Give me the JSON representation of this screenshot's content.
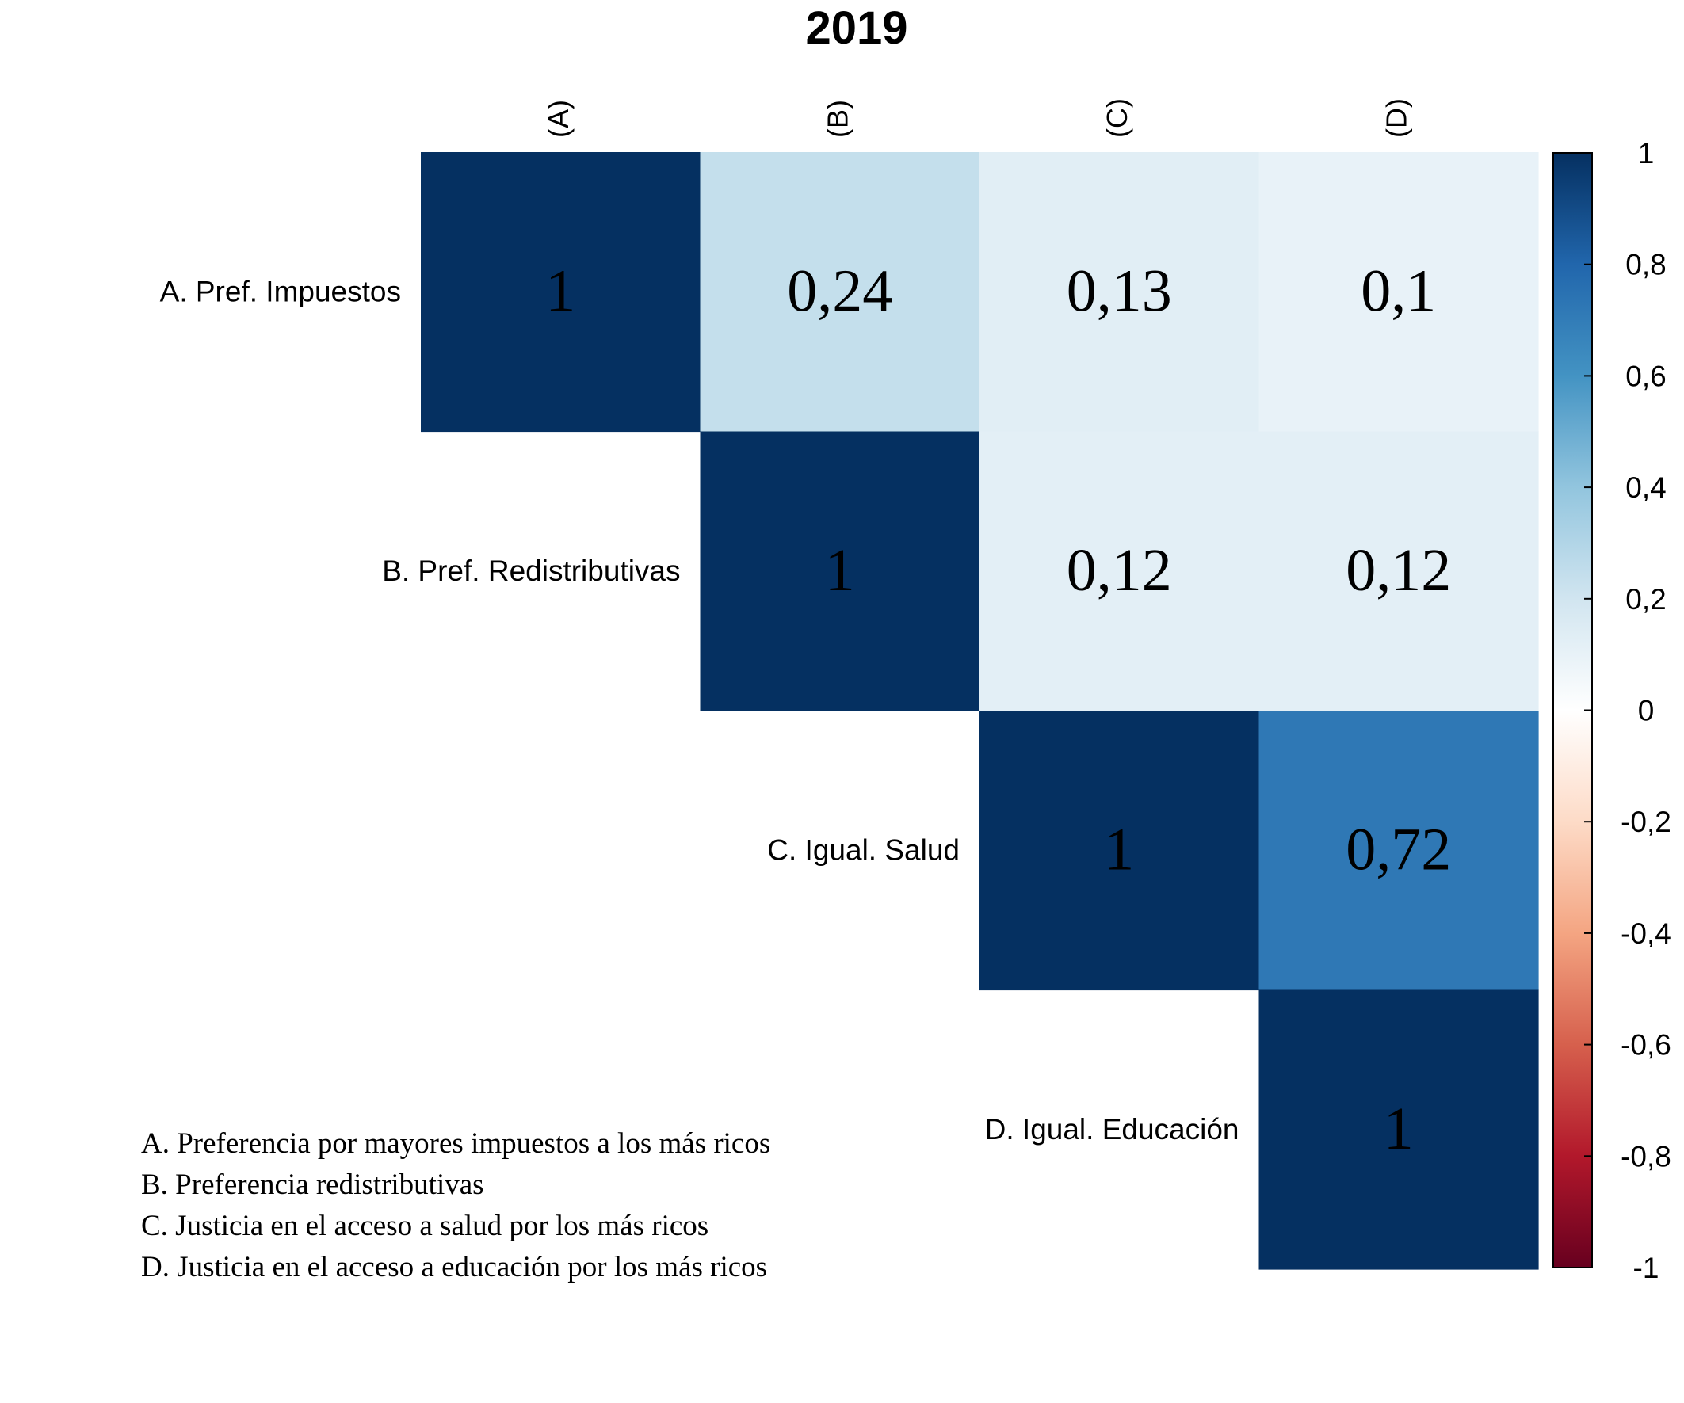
{
  "chart_data": {
    "type": "heatmap",
    "title": "2019",
    "column_labels": [
      "(A)",
      "(B)",
      "(C)",
      "(D)"
    ],
    "row_labels": [
      "A. Pref. Impuestos",
      "B. Pref. Redistributivas",
      "C. Igual. Salud",
      "D. Igual. Educación"
    ],
    "cells": [
      {
        "row": 0,
        "col": 0,
        "value": 1,
        "label": "1"
      },
      {
        "row": 0,
        "col": 1,
        "value": 0.24,
        "label": "0,24"
      },
      {
        "row": 0,
        "col": 2,
        "value": 0.13,
        "label": "0,13"
      },
      {
        "row": 0,
        "col": 3,
        "value": 0.1,
        "label": "0,1"
      },
      {
        "row": 1,
        "col": 1,
        "value": 1,
        "label": "1"
      },
      {
        "row": 1,
        "col": 2,
        "value": 0.12,
        "label": "0,12"
      },
      {
        "row": 1,
        "col": 3,
        "value": 0.12,
        "label": "0,12"
      },
      {
        "row": 2,
        "col": 2,
        "value": 1,
        "label": "1"
      },
      {
        "row": 2,
        "col": 3,
        "value": 0.72,
        "label": "0,72"
      },
      {
        "row": 3,
        "col": 3,
        "value": 1,
        "label": "1"
      }
    ],
    "color_scale": {
      "range": [
        -1,
        1
      ],
      "ticks": [
        1,
        0.8,
        0.6,
        0.4,
        0.2,
        0,
        -0.2,
        -0.4,
        -0.6,
        -0.8,
        -1
      ],
      "tick_labels": [
        "1",
        "0,8",
        "0,6",
        "0,4",
        "0,2",
        "0",
        "-0,2",
        "-0,4",
        "-0,6",
        "-0,8",
        "-1"
      ],
      "colors": [
        "#67001F",
        "#B2182B",
        "#D6604D",
        "#F4A582",
        "#FDDBC7",
        "#FFFFFF",
        "#D1E5F0",
        "#92C5DE",
        "#4393C3",
        "#2166AC",
        "#053061"
      ]
    },
    "notes": [
      "A. Preferencia por mayores impuestos a los más ricos",
      "B. Preferencia redistributivas",
      "C. Justicia en el acceso a salud por los más ricos",
      "D. Justicia en el acceso a educación por los más ricos"
    ]
  }
}
